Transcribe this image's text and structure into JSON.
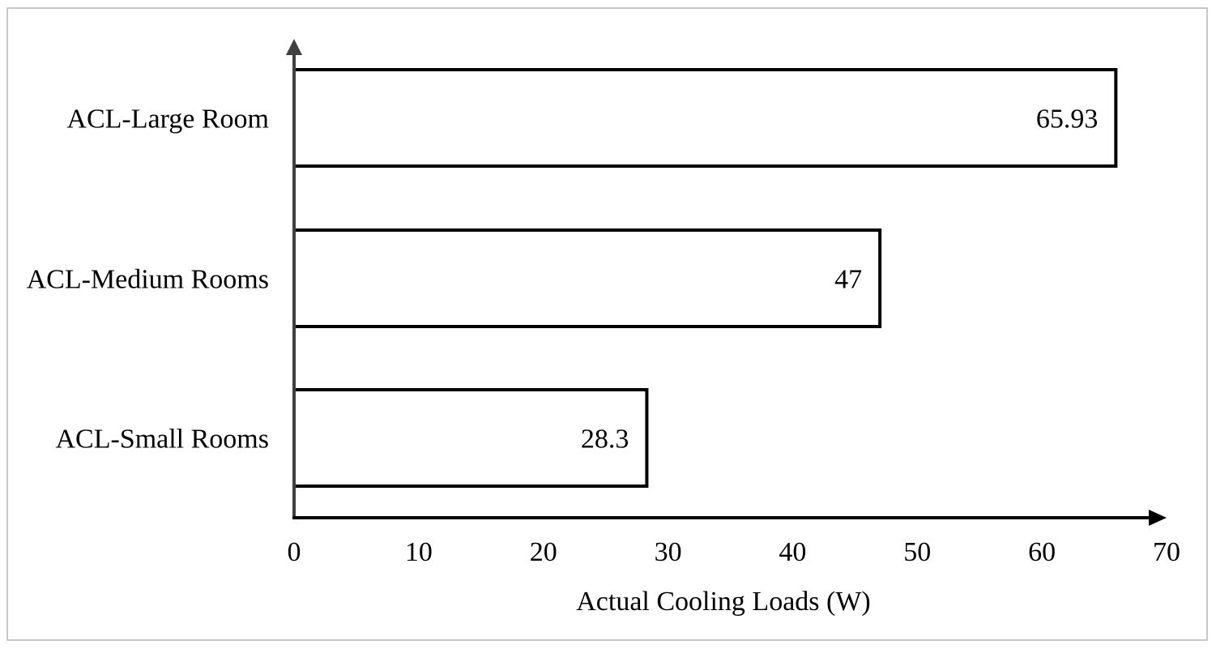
{
  "chart_data": {
    "type": "bar",
    "orientation": "horizontal",
    "categories": [
      "ACL-Large Room",
      "ACL-Medium Rooms",
      "ACL-Small Rooms"
    ],
    "values": [
      65.93,
      47,
      28.3
    ],
    "data_labels": [
      "65.93",
      "47",
      "28.3"
    ],
    "xlabel": "Actual Cooling Loads (W)",
    "ylabel": "",
    "xlim": [
      0,
      70
    ],
    "x_ticks": [
      "0",
      "10",
      "20",
      "30",
      "40",
      "50",
      "60",
      "70"
    ],
    "grid": false,
    "legend": "none",
    "bar_fill": "#ffffff",
    "bar_stroke": "#000000",
    "y_axis_color": "#404040",
    "x_axis_color": "#000000"
  }
}
